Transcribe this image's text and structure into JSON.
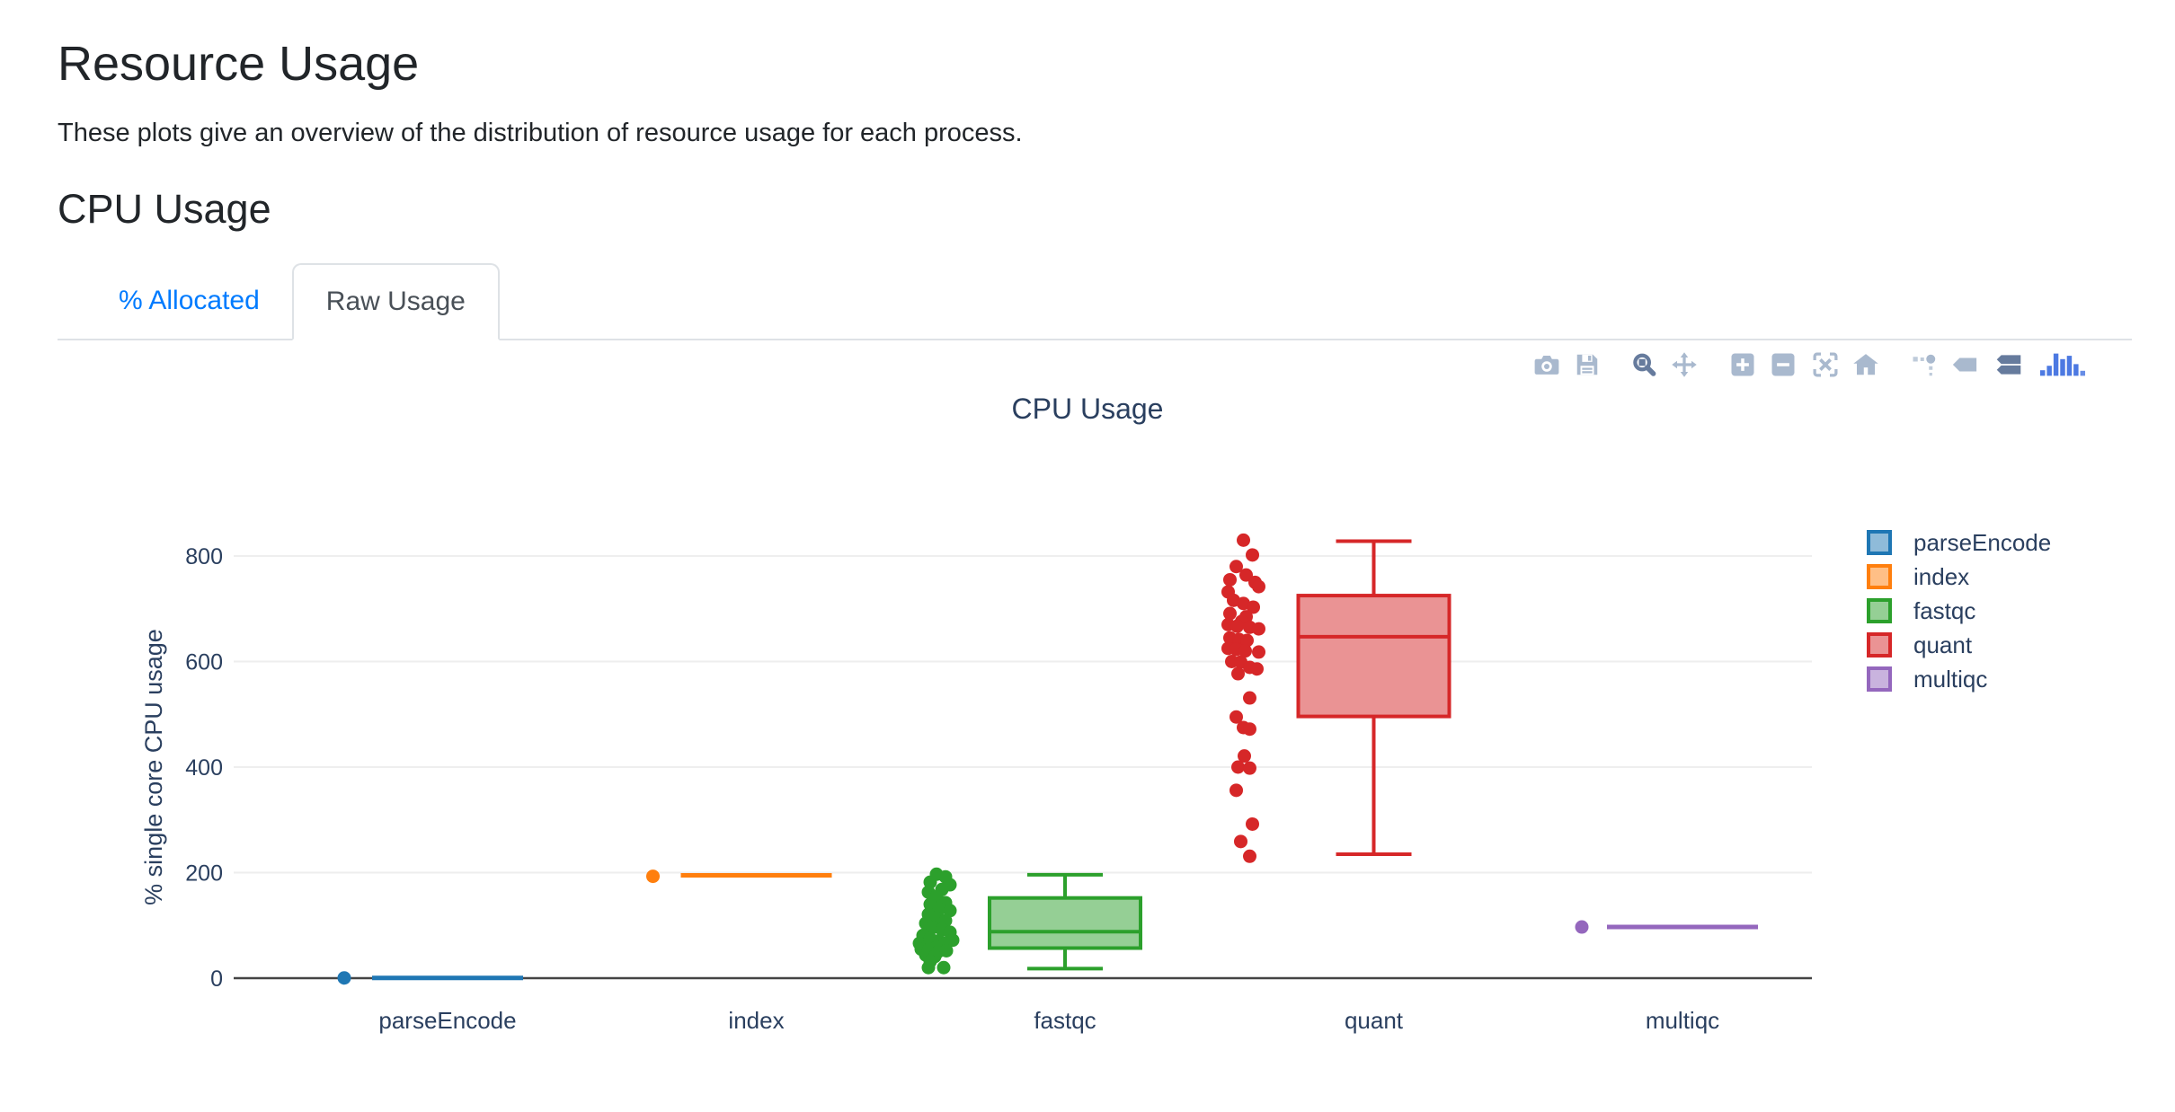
{
  "page": {
    "title": "Resource Usage",
    "subtitle": "These plots give an overview of the distribution of resource usage for each process."
  },
  "section": {
    "heading": "CPU Usage"
  },
  "tabs": [
    {
      "label": "% Allocated",
      "active": false
    },
    {
      "label": "Raw Usage",
      "active": true
    }
  ],
  "colors": {
    "link_blue": "#007bff",
    "tab_text": "#495057",
    "tab_border": "#dee2e6",
    "chart_text": "#2a3f5f",
    "grid": "#eeeeee",
    "zeroline": "#444444",
    "modebar_inactive": "#a9b9ce",
    "modebar_active": "#667b9d",
    "plotly_logo_blue": "#4c79e2"
  },
  "modebar": {
    "icons": [
      "camera-icon",
      "save-icon",
      "zoom-icon",
      "pan-icon",
      "zoom-in-icon",
      "zoom-out-icon",
      "autoscale-icon",
      "reset-axes-icon",
      "spikelines-icon",
      "hover-closest-icon",
      "hover-compare-icon",
      "plotly-logo-icon"
    ],
    "active_icons": [
      "zoom-icon",
      "hover-compare-icon"
    ]
  },
  "chart_data": {
    "type": "box",
    "title": "CPU Usage",
    "xlabel": "",
    "ylabel": "% single core CPU usage",
    "yticks": [
      0,
      200,
      400,
      600,
      800
    ],
    "ylim": [
      -20,
      930
    ],
    "grid": true,
    "legend_position": "right",
    "categories": [
      "parseEncode",
      "index",
      "fastqc",
      "quant",
      "multiqc"
    ],
    "series": [
      {
        "name": "parseEncode",
        "color": "#1f77b4",
        "fill": "#8fbbd9",
        "stats": {
          "min": 0.5,
          "q1": 0.5,
          "median": 0.5,
          "q3": 0.5,
          "max": 0.5
        },
        "points": [
          [
            -115,
            0.5
          ]
        ]
      },
      {
        "name": "index",
        "color": "#ff7f0e",
        "fill": "#ffbf86",
        "stats": {
          "min": 195,
          "q1": 195,
          "median": 195,
          "q3": 195,
          "max": 195
        },
        "points": [
          [
            -115,
            193
          ]
        ]
      },
      {
        "name": "fastqc",
        "color": "#2ca02c",
        "fill": "#95cf95",
        "stats": {
          "min": 18,
          "q1": 57,
          "median": 88,
          "q3": 152,
          "max": 196
        },
        "points": [
          [
            -143,
            197
          ],
          [
            -133,
            192
          ],
          [
            -150,
            182
          ],
          [
            -128,
            177
          ],
          [
            -137,
            168
          ],
          [
            -152,
            163
          ],
          [
            -143,
            155
          ],
          [
            -133,
            143
          ],
          [
            -150,
            140
          ],
          [
            -140,
            131
          ],
          [
            -128,
            128
          ],
          [
            -152,
            121
          ],
          [
            -143,
            114
          ],
          [
            -133,
            109
          ],
          [
            -155,
            104
          ],
          [
            -147,
            96
          ],
          [
            -137,
            92
          ],
          [
            -128,
            87
          ],
          [
            -158,
            81
          ],
          [
            -150,
            75
          ],
          [
            -140,
            71
          ],
          [
            -162,
            66
          ],
          [
            -133,
            66
          ],
          [
            -125,
            72
          ],
          [
            -153,
            61
          ],
          [
            -143,
            58
          ],
          [
            -160,
            55
          ],
          [
            -152,
            53
          ],
          [
            -142,
            49
          ],
          [
            -132,
            52
          ],
          [
            -155,
            44
          ],
          [
            -145,
            41
          ],
          [
            -150,
            32
          ],
          [
            -135,
            20
          ],
          [
            -152,
            20
          ]
        ]
      },
      {
        "name": "quant",
        "color": "#d62728",
        "fill": "#ea9394",
        "stats": {
          "min": 235,
          "q1": 496,
          "median": 647,
          "q3": 725,
          "max": 828
        },
        "points": [
          [
            -145,
            830
          ],
          [
            -135,
            802
          ],
          [
            -153,
            780
          ],
          [
            -142,
            764
          ],
          [
            -160,
            755
          ],
          [
            -132,
            750
          ],
          [
            -128,
            742
          ],
          [
            -162,
            732
          ],
          [
            -156,
            716
          ],
          [
            -145,
            710
          ],
          [
            -134,
            703
          ],
          [
            -160,
            691
          ],
          [
            -142,
            685
          ],
          [
            -147,
            676
          ],
          [
            -162,
            670
          ],
          [
            -152,
            667
          ],
          [
            -138,
            665
          ],
          [
            -128,
            662
          ],
          [
            -160,
            645
          ],
          [
            -150,
            642
          ],
          [
            -141,
            640
          ],
          [
            -162,
            625
          ],
          [
            -153,
            623
          ],
          [
            -143,
            620
          ],
          [
            -128,
            618
          ],
          [
            -158,
            600
          ],
          [
            -148,
            599
          ],
          [
            -138,
            589
          ],
          [
            -130,
            586
          ],
          [
            -151,
            577
          ],
          [
            -138,
            531
          ],
          [
            -153,
            495
          ],
          [
            -145,
            475
          ],
          [
            -138,
            472
          ],
          [
            -144,
            421
          ],
          [
            -151,
            400
          ],
          [
            -138,
            398
          ],
          [
            -153,
            356
          ],
          [
            -135,
            292
          ],
          [
            -148,
            259
          ],
          [
            -138,
            231
          ]
        ]
      },
      {
        "name": "multiqc",
        "color": "#9467bd",
        "fill": "#c9b3de",
        "stats": {
          "min": 97,
          "q1": 97,
          "median": 97,
          "q3": 97,
          "max": 97
        },
        "points": [
          [
            -112,
            97
          ]
        ]
      }
    ]
  }
}
